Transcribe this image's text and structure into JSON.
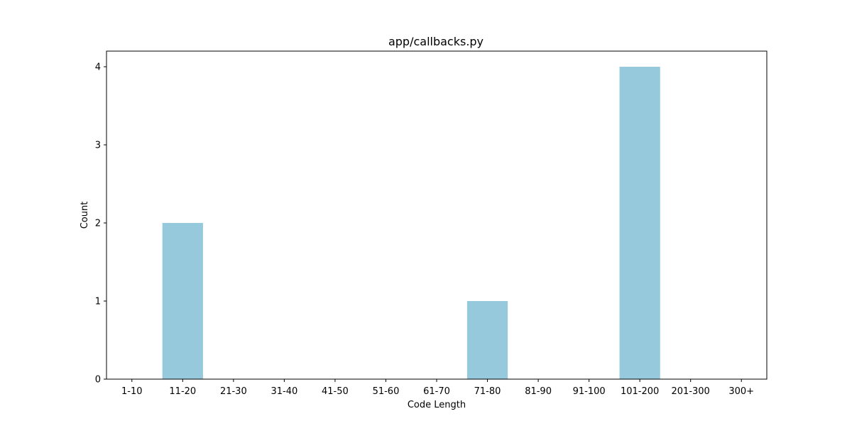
{
  "chart_data": {
    "type": "bar",
    "title": "app/callbacks.py",
    "xlabel": "Code Length",
    "ylabel": "Count",
    "categories": [
      "1-10",
      "11-20",
      "21-30",
      "31-40",
      "41-50",
      "51-60",
      "61-70",
      "71-80",
      "81-90",
      "91-100",
      "101-200",
      "201-300",
      "300+"
    ],
    "values": [
      0,
      2,
      0,
      0,
      0,
      0,
      0,
      1,
      0,
      0,
      4,
      0,
      0
    ],
    "ylim": [
      0,
      4.2
    ],
    "yticks": [
      0,
      1,
      2,
      3,
      4
    ],
    "grid": false,
    "bar_color": "#96c9dc"
  }
}
